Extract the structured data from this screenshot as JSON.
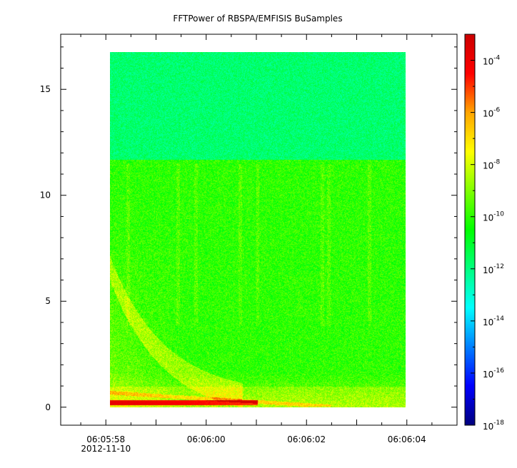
{
  "chart_data": {
    "type": "heatmap",
    "title": "FFTPower of RBSPA/EMFISIS  BuSamples",
    "xlabel": "",
    "ylabel": "",
    "x_range": [
      "06:05:57.1",
      "06:06:05.0"
    ],
    "y_range": [
      -0.85,
      17.6
    ],
    "data_x_range": [
      "06:05:58.0",
      "06:06:04.2"
    ],
    "data_y_range": [
      0,
      17.5
    ],
    "x_major_ticks": [
      "06:05:58",
      "06:06:00",
      "06:06:02",
      "06:06:04"
    ],
    "x_date_label": "2012-11-10",
    "y_major_ticks": [
      0,
      5,
      10,
      15
    ],
    "colorbar": {
      "scale": "log",
      "range": [
        1e-18,
        0.001
      ],
      "major_tick_labels": [
        {
          "base": "10",
          "exp": "-4"
        },
        {
          "base": "10",
          "exp": "-6"
        },
        {
          "base": "10",
          "exp": "-8"
        },
        {
          "base": "10",
          "exp": "-10"
        },
        {
          "base": "10",
          "exp": "-12"
        },
        {
          "base": "10",
          "exp": "-14"
        },
        {
          "base": "10",
          "exp": "-16"
        },
        {
          "base": "10",
          "exp": "-18"
        }
      ],
      "colormap": [
        "#00007f",
        "#0000ff",
        "#0080ff",
        "#00ffff",
        "#00ff80",
        "#00ff00",
        "#80ff00",
        "#ffff00",
        "#ffa500",
        "#ff0000",
        "#cc0000"
      ]
    },
    "features": {
      "background_upper_band": {
        "y_from": 12.2,
        "y_to": 17.5,
        "log10_power": -11.8
      },
      "background_lower_band": {
        "y_from": 0,
        "y_to": 12.2,
        "log10_power": -10
      },
      "low_frequency_enhancement": {
        "y_max": 1.0,
        "log10_power": -8
      },
      "strongest_line": {
        "freq": 0.2,
        "log10_power": -5
      }
    },
    "grid": false,
    "legend": "colorbar-right"
  }
}
